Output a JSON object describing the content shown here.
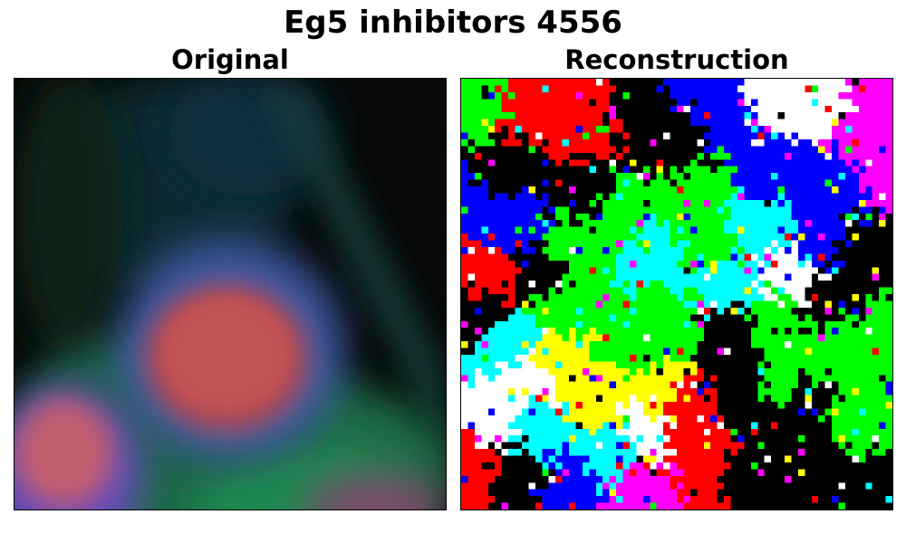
{
  "figure": {
    "title": "Eg5 inhibitors 4556"
  },
  "panels": {
    "left": {
      "title": "Original"
    },
    "right": {
      "title": "Reconstruction"
    }
  },
  "colors": {
    "background": "#ffffff",
    "recon_palette": [
      "#000000",
      "#ff0000",
      "#00ff00",
      "#0000ff",
      "#00ffff",
      "#ff00ff",
      "#ffff00",
      "#ffffff"
    ]
  }
}
